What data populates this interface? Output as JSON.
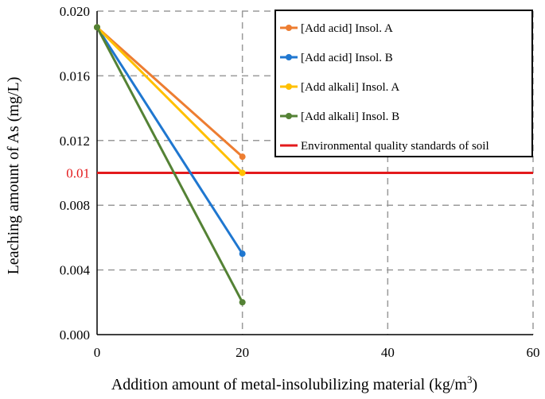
{
  "chart_data": {
    "type": "line",
    "x": [
      0,
      20
    ],
    "xlim": [
      0,
      60
    ],
    "xticks": [
      0,
      20,
      40,
      60
    ],
    "xtick_labels": [
      "0",
      "20",
      "40",
      "60"
    ],
    "ylim": [
      0,
      0.02
    ],
    "yticks": [
      0,
      0.004,
      0.008,
      0.012,
      0.016,
      0.02
    ],
    "ytick_labels": [
      "0.000",
      "0.004",
      "0.008",
      "0.012",
      "0.016",
      "0.020"
    ],
    "xlabel_main": "Addition amount of metal-insolubilizing material (kg/m",
    "xlabel_sup": "3",
    "xlabel_close": ")",
    "ylabel": "Leaching amount of As (mg/L)",
    "grid": "dashed",
    "legend_position": "top-right",
    "series": [
      {
        "name": "[Add acid] Insol. A",
        "color": "#ED7D31",
        "x": [
          0,
          20
        ],
        "values": [
          0.019,
          0.011
        ]
      },
      {
        "name": "[Add acid] Insol. B",
        "color": "#1F77D0",
        "x": [
          0,
          20
        ],
        "values": [
          0.019,
          0.005
        ]
      },
      {
        "name": "[Add alkali] Insol. A",
        "color": "#FFC000",
        "x": [
          0,
          20
        ],
        "values": [
          0.019,
          0.01
        ]
      },
      {
        "name": "[Add alkali] Insol. B",
        "color": "#548235",
        "x": [
          0,
          20
        ],
        "values": [
          0.019,
          0.002
        ]
      }
    ],
    "reference_line": {
      "name": "Environmental quality standards of soil",
      "value": 0.01,
      "label": "0.01",
      "color": "#E31A1C"
    }
  }
}
